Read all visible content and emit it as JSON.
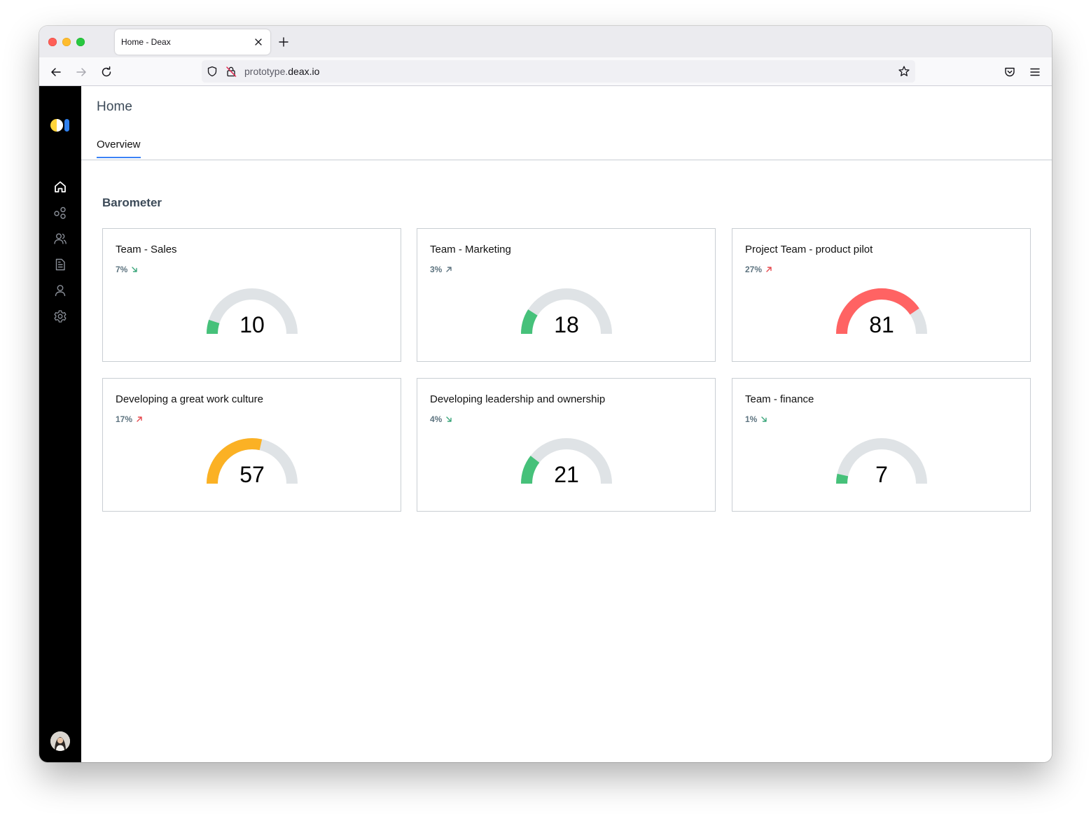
{
  "browser": {
    "tab_title": "Home - Deax",
    "url_prefix": "prototype.",
    "url_domain": "deax.io"
  },
  "page": {
    "title": "Home",
    "tab": "Overview",
    "section_title": "Barometer"
  },
  "sidebar": {
    "items": [
      {
        "icon": "home-icon",
        "active": true
      },
      {
        "icon": "groups-icon",
        "active": false
      },
      {
        "icon": "users-icon",
        "active": false
      },
      {
        "icon": "document-icon",
        "active": false
      },
      {
        "icon": "person-icon",
        "active": false
      },
      {
        "icon": "gear-icon",
        "active": false
      }
    ]
  },
  "colors": {
    "low": "#46c17a",
    "mid": "#fbb124",
    "high": "#ff6363",
    "track": "#dfe3e6",
    "trend_down": "#3aa57a",
    "trend_up_mild": "#5e7480",
    "trend_up": "#e5484d",
    "tab_underline": "#3b82f6"
  },
  "cards": [
    {
      "title": "Team - Sales",
      "change": "7%",
      "trend": "down",
      "value": "10",
      "level": 0.1,
      "color": "#46c17a",
      "trend_color": "#3aa57a"
    },
    {
      "title": "Team - Marketing",
      "change": "3%",
      "trend": "up",
      "value": "18",
      "level": 0.18,
      "color": "#46c17a",
      "trend_color": "#5e7480"
    },
    {
      "title": "Project Team - product pilot",
      "change": "27%",
      "trend": "up",
      "value": "81",
      "level": 0.81,
      "color": "#ff6363",
      "trend_color": "#e5484d"
    },
    {
      "title": "Developing a great work culture",
      "change": "17%",
      "trend": "up",
      "value": "57",
      "level": 0.57,
      "color": "#fbb124",
      "trend_color": "#e5484d"
    },
    {
      "title": "Developing leadership and ownership",
      "change": "4%",
      "trend": "down",
      "value": "21",
      "level": 0.21,
      "color": "#46c17a",
      "trend_color": "#3aa57a"
    },
    {
      "title": "Team - finance",
      "change": "1%",
      "trend": "down",
      "value": "7",
      "level": 0.07,
      "color": "#46c17a",
      "trend_color": "#3aa57a"
    }
  ]
}
